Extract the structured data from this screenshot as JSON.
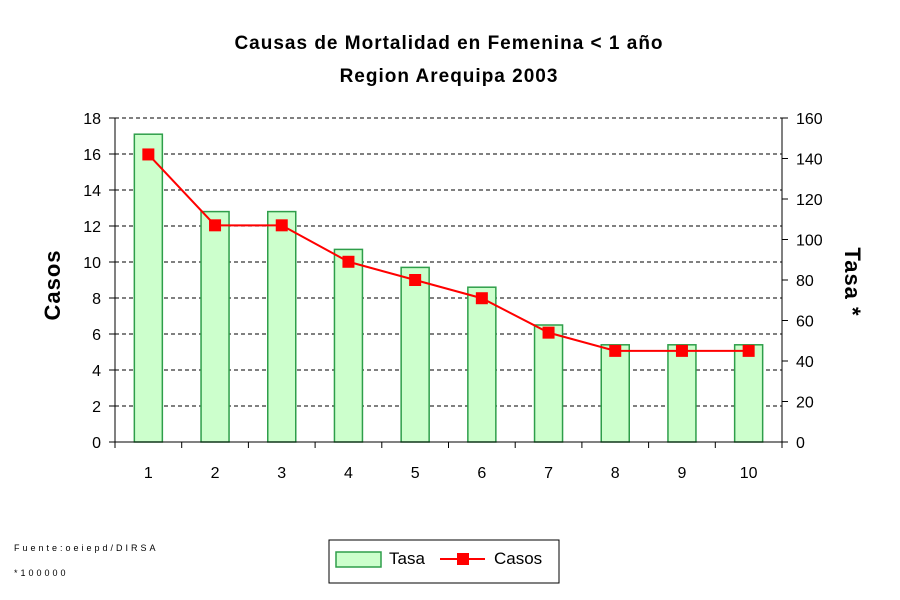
{
  "colors": {
    "bar_fill": "#ccffcc",
    "bar_stroke": "#2e9e4a",
    "line": "#ff0000",
    "marker": "#ff0000",
    "grid": "#000000"
  },
  "notes": {
    "source": "Fuente:oeiepd/DIRSA",
    "rate": "*100000"
  },
  "legend": {
    "bar_label": "Tasa",
    "line_label": "Casos",
    "position": "bottom-center"
  },
  "chart_data": {
    "type": "bar",
    "title": "Causas de Mortalidad en Femenina < 1 año",
    "subtitle": "Region Arequipa 2003",
    "ylabel": "Casos",
    "y2label": "Tasa *",
    "categories": [
      "1",
      "2",
      "3",
      "4",
      "5",
      "6",
      "7",
      "8",
      "9",
      "10"
    ],
    "ylim": [
      0,
      18
    ],
    "y2lim": [
      0,
      160
    ],
    "yticks": [
      0,
      2,
      4,
      6,
      8,
      10,
      12,
      14,
      16,
      18
    ],
    "y2ticks": [
      0,
      20,
      40,
      60,
      80,
      100,
      120,
      140,
      160
    ],
    "grid": true,
    "series": [
      {
        "name": "Tasa",
        "type": "bar",
        "axis": "left",
        "values": [
          17.1,
          12.8,
          12.8,
          10.7,
          9.7,
          8.6,
          6.5,
          5.4,
          5.4,
          5.4
        ]
      },
      {
        "name": "Casos",
        "type": "line",
        "axis": "right",
        "values": [
          142,
          107,
          107,
          89,
          80,
          71,
          54,
          45,
          45,
          45
        ]
      }
    ]
  }
}
